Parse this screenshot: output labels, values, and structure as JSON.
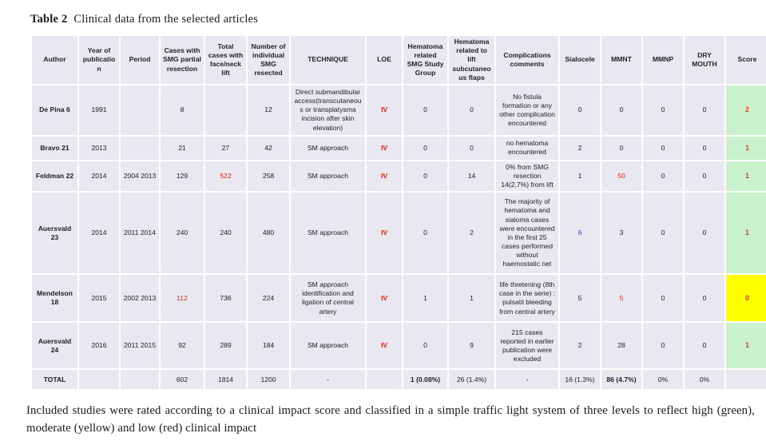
{
  "title": {
    "label": "Table 2",
    "text": "Clinical data from the selected articles"
  },
  "caption": "Included studies were rated according to a clinical impact score and classified in a simple traffic light system of three levels to reflect high (green), moderate (yellow) and low (red) clinical impact",
  "colors": {
    "cell_bg": "#e9e8f0",
    "score_green": "#c9f2cc",
    "score_yellow": "#ffff00",
    "red_text": "#f51d12",
    "blue_text": "#4545d6",
    "score_text": "#e8401c"
  },
  "table": {
    "columns": [
      "Author",
      "Year of publication",
      "Period",
      "Cases with SMG partial resection",
      "Total cases with face/neck lift",
      "Number of individual SMG resected",
      "TECHNIQUE",
      "LOE",
      "Hematoma related SMG Study Group",
      "Hematoma related to lift subcutaneous flaps",
      "Complications comments",
      "Sialocele",
      "MMNT",
      "MMNP",
      "DRY MOUTH",
      "Score"
    ],
    "rows": [
      {
        "cells": [
          {
            "t": "De Pina 6",
            "bold": true
          },
          {
            "t": "1991"
          },
          {
            "t": ""
          },
          {
            "t": "8"
          },
          {
            "t": ""
          },
          {
            "t": "12"
          },
          {
            "t": "Direct submandibular access(transcutaneous or transplatysma incision after skin elevation)"
          },
          {
            "t": "IV",
            "color": "red",
            "bold": true
          },
          {
            "t": "0"
          },
          {
            "t": "0"
          },
          {
            "t": "No fistula formation or any other complication encountered"
          },
          {
            "t": "0"
          },
          {
            "t": "0"
          },
          {
            "t": "0"
          },
          {
            "t": "0"
          },
          {
            "t": "2",
            "score": true,
            "bg": "green"
          }
        ]
      },
      {
        "cells": [
          {
            "t": "Bravo 21",
            "bold": true
          },
          {
            "t": "2013"
          },
          {
            "t": ""
          },
          {
            "t": "21"
          },
          {
            "t": "27"
          },
          {
            "t": "42"
          },
          {
            "t": "SM approach"
          },
          {
            "t": "IV",
            "color": "red",
            "bold": true
          },
          {
            "t": "0"
          },
          {
            "t": "0"
          },
          {
            "t": "no hematoma encountered"
          },
          {
            "t": "2"
          },
          {
            "t": "0"
          },
          {
            "t": "0"
          },
          {
            "t": "0"
          },
          {
            "t": "1",
            "score": true,
            "bg": "green"
          }
        ]
      },
      {
        "cells": [
          {
            "t": "Feldman 22",
            "bold": true
          },
          {
            "t": "2014"
          },
          {
            "t": "2004 2013"
          },
          {
            "t": "129"
          },
          {
            "t": "522",
            "color": "red"
          },
          {
            "t": "258"
          },
          {
            "t": "SM approach"
          },
          {
            "t": "IV",
            "color": "red",
            "bold": true
          },
          {
            "t": "0"
          },
          {
            "t": "14"
          },
          {
            "t": "0% from SMG resection 14(2,7%) from lift"
          },
          {
            "t": "1"
          },
          {
            "t": "50",
            "color": "red"
          },
          {
            "t": "0"
          },
          {
            "t": "0"
          },
          {
            "t": "1",
            "score": true,
            "bg": "green"
          }
        ]
      },
      {
        "cells": [
          {
            "t": "Auersvald 23",
            "bold": true
          },
          {
            "t": "2014"
          },
          {
            "t": "2011 2014"
          },
          {
            "t": "240"
          },
          {
            "t": "240"
          },
          {
            "t": "480"
          },
          {
            "t": "SM approach"
          },
          {
            "t": "IV",
            "color": "red",
            "bold": true
          },
          {
            "t": "0"
          },
          {
            "t": "2"
          },
          {
            "t": "The majority of hematoma and sialoma cases were encountered in the first 25 cases performed without haemostatic net"
          },
          {
            "t": "6",
            "color": "blue"
          },
          {
            "t": "3"
          },
          {
            "t": "0"
          },
          {
            "t": "0"
          },
          {
            "t": "1",
            "score": true,
            "bg": "green"
          }
        ]
      },
      {
        "cells": [
          {
            "t": "Mendelson 18",
            "bold": true
          },
          {
            "t": "2015"
          },
          {
            "t": "2002 2013"
          },
          {
            "t": "112",
            "color": "red"
          },
          {
            "t": "736"
          },
          {
            "t": "224"
          },
          {
            "t": "SM approach identification and ligation of central artery"
          },
          {
            "t": "IV",
            "color": "red",
            "bold": true
          },
          {
            "t": "1"
          },
          {
            "t": "1"
          },
          {
            "t": "life thretening (8th case in the serie) : pulsatil bleeding from central artery"
          },
          {
            "t": "5"
          },
          {
            "t": "5",
            "color": "red"
          },
          {
            "t": "0"
          },
          {
            "t": "0"
          },
          {
            "t": "0",
            "score": true,
            "bg": "yellow"
          }
        ]
      },
      {
        "cells": [
          {
            "t": "Auersvald 24",
            "bold": true
          },
          {
            "t": "2016"
          },
          {
            "t": "2011 2015"
          },
          {
            "t": "92"
          },
          {
            "t": "289"
          },
          {
            "t": "184"
          },
          {
            "t": "SM approach"
          },
          {
            "t": "IV",
            "color": "red",
            "bold": true
          },
          {
            "t": "0"
          },
          {
            "t": "9"
          },
          {
            "t": "215 cases reported in earlier publication were excluded"
          },
          {
            "t": "2"
          },
          {
            "t": "28"
          },
          {
            "t": "0"
          },
          {
            "t": "0"
          },
          {
            "t": "1",
            "score": true,
            "bg": "green"
          }
        ]
      },
      {
        "cells": [
          {
            "t": "TOTAL",
            "bold": true
          },
          {
            "t": ""
          },
          {
            "t": ""
          },
          {
            "t": "602"
          },
          {
            "t": "1814"
          },
          {
            "t": "1200"
          },
          {
            "t": "-"
          },
          {
            "t": ""
          },
          {
            "t": "1 (0.08%)",
            "bold": true
          },
          {
            "t": "26 (1.4%)"
          },
          {
            "t": "-"
          },
          {
            "t": "16 (1.3%)"
          },
          {
            "t": "86 (4.7%)",
            "bold": true
          },
          {
            "t": "0%"
          },
          {
            "t": "0%"
          },
          {
            "t": ""
          }
        ]
      }
    ]
  }
}
